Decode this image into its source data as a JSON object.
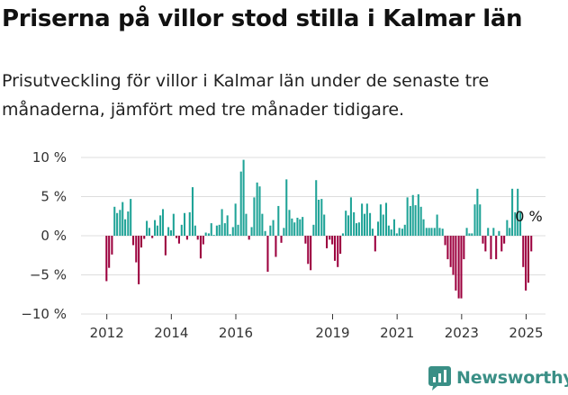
{
  "title": "Priserna på villor stod stilla i Kalmar län",
  "subtitle": "Prisutveckling för villor i Kalmar län under de senaste tre månaderna, jämfört med tre månader tidigare.",
  "brand": "Newsworthy",
  "colors": {
    "positive": "#1fa397",
    "negative": "#9c003e",
    "text": "#111111",
    "grid": "#dddddd",
    "brand": "#3a8f86"
  },
  "chart_data": {
    "type": "bar",
    "y_tick_labels": [
      "10 %",
      "5 %",
      "0 %",
      "−5 %",
      "−10 %"
    ],
    "y_ticks": [
      10,
      5,
      0,
      -5,
      -10
    ],
    "ylim": [
      -10,
      10
    ],
    "x_tick_labels": [
      "2012",
      "2014",
      "2016",
      "2019",
      "2021",
      "2023",
      "2025"
    ],
    "x_ticks": [
      2012,
      2014,
      2016,
      2019,
      2021,
      2023,
      2025
    ],
    "xlim": [
      2011.2,
      2025.6
    ],
    "annotation": "0 %",
    "series": [
      {
        "values": [
          {
            "x": 2011.99,
            "y": -5.8
          },
          {
            "x": 2012.07,
            "y": -4.1
          },
          {
            "x": 2012.16,
            "y": -2.4
          },
          {
            "x": 2012.24,
            "y": 3.7
          },
          {
            "x": 2012.32,
            "y": 2.9
          },
          {
            "x": 2012.41,
            "y": 3.3
          },
          {
            "x": 2012.49,
            "y": 4.3
          },
          {
            "x": 2012.57,
            "y": 2.1
          },
          {
            "x": 2012.66,
            "y": 3.1
          },
          {
            "x": 2012.74,
            "y": 4.7
          },
          {
            "x": 2012.82,
            "y": -1.2
          },
          {
            "x": 2012.91,
            "y": -3.4
          },
          {
            "x": 2012.99,
            "y": -6.2
          },
          {
            "x": 2013.07,
            "y": -1.5
          },
          {
            "x": 2013.16,
            "y": -0.4
          },
          {
            "x": 2013.24,
            "y": 1.9
          },
          {
            "x": 2013.32,
            "y": 1.0
          },
          {
            "x": 2013.41,
            "y": -0.3
          },
          {
            "x": 2013.49,
            "y": 2.0
          },
          {
            "x": 2013.57,
            "y": 1.3
          },
          {
            "x": 2013.66,
            "y": 2.6
          },
          {
            "x": 2013.74,
            "y": 3.4
          },
          {
            "x": 2013.82,
            "y": -2.5
          },
          {
            "x": 2013.91,
            "y": 1.1
          },
          {
            "x": 2013.99,
            "y": 0.7
          },
          {
            "x": 2014.07,
            "y": 2.8
          },
          {
            "x": 2014.16,
            "y": -0.3
          },
          {
            "x": 2014.24,
            "y": -1.0
          },
          {
            "x": 2014.32,
            "y": 1.4
          },
          {
            "x": 2014.41,
            "y": 2.9
          },
          {
            "x": 2014.49,
            "y": -0.5
          },
          {
            "x": 2014.57,
            "y": 3.0
          },
          {
            "x": 2014.66,
            "y": 6.2
          },
          {
            "x": 2014.74,
            "y": 1.3
          },
          {
            "x": 2014.82,
            "y": -0.5
          },
          {
            "x": 2014.91,
            "y": -2.9
          },
          {
            "x": 2014.99,
            "y": -1.1
          },
          {
            "x": 2015.07,
            "y": 0.4
          },
          {
            "x": 2015.16,
            "y": 0.3
          },
          {
            "x": 2015.24,
            "y": 1.6
          },
          {
            "x": 2015.32,
            "y": 0.1
          },
          {
            "x": 2015.41,
            "y": 1.3
          },
          {
            "x": 2015.49,
            "y": 1.4
          },
          {
            "x": 2015.57,
            "y": 3.4
          },
          {
            "x": 2015.66,
            "y": 1.6
          },
          {
            "x": 2015.74,
            "y": 2.6
          },
          {
            "x": 2015.82,
            "y": 0.2
          },
          {
            "x": 2015.91,
            "y": 1.1
          },
          {
            "x": 2015.99,
            "y": 4.1
          },
          {
            "x": 2016.07,
            "y": 1.4
          },
          {
            "x": 2016.16,
            "y": 8.2
          },
          {
            "x": 2016.24,
            "y": 9.7
          },
          {
            "x": 2016.32,
            "y": 2.8
          },
          {
            "x": 2016.41,
            "y": -0.5
          },
          {
            "x": 2016.49,
            "y": 1.1
          },
          {
            "x": 2016.57,
            "y": 4.9
          },
          {
            "x": 2016.66,
            "y": 6.8
          },
          {
            "x": 2016.74,
            "y": 6.3
          },
          {
            "x": 2016.82,
            "y": 2.8
          },
          {
            "x": 2016.91,
            "y": 0.6
          },
          {
            "x": 2016.99,
            "y": -4.6
          },
          {
            "x": 2017.07,
            "y": 1.3
          },
          {
            "x": 2017.16,
            "y": 2.0
          },
          {
            "x": 2017.24,
            "y": -2.7
          },
          {
            "x": 2017.32,
            "y": 3.8
          },
          {
            "x": 2017.41,
            "y": -0.9
          },
          {
            "x": 2017.49,
            "y": 1.0
          },
          {
            "x": 2017.57,
            "y": 7.2
          },
          {
            "x": 2017.66,
            "y": 3.3
          },
          {
            "x": 2017.74,
            "y": 2.2
          },
          {
            "x": 2017.82,
            "y": 1.7
          },
          {
            "x": 2017.91,
            "y": 2.3
          },
          {
            "x": 2017.99,
            "y": 2.1
          },
          {
            "x": 2018.07,
            "y": 2.4
          },
          {
            "x": 2018.16,
            "y": -1.0
          },
          {
            "x": 2018.24,
            "y": -3.6
          },
          {
            "x": 2018.32,
            "y": -4.4
          },
          {
            "x": 2018.41,
            "y": 1.4
          },
          {
            "x": 2018.49,
            "y": 7.1
          },
          {
            "x": 2018.57,
            "y": 4.6
          },
          {
            "x": 2018.66,
            "y": 4.7
          },
          {
            "x": 2018.74,
            "y": 2.7
          },
          {
            "x": 2018.82,
            "y": -1.6
          },
          {
            "x": 2018.91,
            "y": -0.5
          },
          {
            "x": 2018.99,
            "y": -1.1
          },
          {
            "x": 2019.07,
            "y": -3.2
          },
          {
            "x": 2019.16,
            "y": -4.0
          },
          {
            "x": 2019.24,
            "y": -2.3
          },
          {
            "x": 2019.32,
            "y": 0.3
          },
          {
            "x": 2019.41,
            "y": 3.2
          },
          {
            "x": 2019.49,
            "y": 2.6
          },
          {
            "x": 2019.57,
            "y": 4.9
          },
          {
            "x": 2019.66,
            "y": 3.0
          },
          {
            "x": 2019.74,
            "y": 1.6
          },
          {
            "x": 2019.82,
            "y": 1.7
          },
          {
            "x": 2019.91,
            "y": 4.1
          },
          {
            "x": 2019.99,
            "y": 2.8
          },
          {
            "x": 2020.07,
            "y": 4.1
          },
          {
            "x": 2020.16,
            "y": 2.9
          },
          {
            "x": 2020.24,
            "y": 0.9
          },
          {
            "x": 2020.32,
            "y": -2.0
          },
          {
            "x": 2020.41,
            "y": 1.8
          },
          {
            "x": 2020.49,
            "y": 4.0
          },
          {
            "x": 2020.57,
            "y": 2.7
          },
          {
            "x": 2020.66,
            "y": 4.2
          },
          {
            "x": 2020.74,
            "y": 1.3
          },
          {
            "x": 2020.82,
            "y": 0.8
          },
          {
            "x": 2020.91,
            "y": 2.1
          },
          {
            "x": 2020.99,
            "y": 0.3
          },
          {
            "x": 2021.07,
            "y": 1.0
          },
          {
            "x": 2021.16,
            "y": 0.9
          },
          {
            "x": 2021.24,
            "y": 1.4
          },
          {
            "x": 2021.32,
            "y": 4.9
          },
          {
            "x": 2021.41,
            "y": 3.8
          },
          {
            "x": 2021.49,
            "y": 5.2
          },
          {
            "x": 2021.57,
            "y": 3.9
          },
          {
            "x": 2021.66,
            "y": 5.3
          },
          {
            "x": 2021.74,
            "y": 3.7
          },
          {
            "x": 2021.82,
            "y": 2.1
          },
          {
            "x": 2021.91,
            "y": 1.0
          },
          {
            "x": 2021.99,
            "y": 1.0
          },
          {
            "x": 2022.07,
            "y": 1.0
          },
          {
            "x": 2022.16,
            "y": 1.0
          },
          {
            "x": 2022.24,
            "y": 2.7
          },
          {
            "x": 2022.32,
            "y": 1.0
          },
          {
            "x": 2022.41,
            "y": 0.9
          },
          {
            "x": 2022.49,
            "y": -1.2
          },
          {
            "x": 2022.57,
            "y": -3.0
          },
          {
            "x": 2022.66,
            "y": -4.0
          },
          {
            "x": 2022.74,
            "y": -5.0
          },
          {
            "x": 2022.82,
            "y": -7.0
          },
          {
            "x": 2022.91,
            "y": -8.0
          },
          {
            "x": 2022.99,
            "y": -8.0
          },
          {
            "x": 2023.07,
            "y": -3.0
          },
          {
            "x": 2023.16,
            "y": 1.0
          },
          {
            "x": 2023.24,
            "y": 0.3
          },
          {
            "x": 2023.32,
            "y": 0.3
          },
          {
            "x": 2023.41,
            "y": 4.0
          },
          {
            "x": 2023.49,
            "y": 6.0
          },
          {
            "x": 2023.57,
            "y": 4.0
          },
          {
            "x": 2023.66,
            "y": -1.0
          },
          {
            "x": 2023.74,
            "y": -2.0
          },
          {
            "x": 2023.82,
            "y": 1.0
          },
          {
            "x": 2023.91,
            "y": -3.0
          },
          {
            "x": 2023.99,
            "y": 1.0
          },
          {
            "x": 2024.07,
            "y": -3.0
          },
          {
            "x": 2024.16,
            "y": 0.6
          },
          {
            "x": 2024.24,
            "y": -2.0
          },
          {
            "x": 2024.32,
            "y": -1.0
          },
          {
            "x": 2024.41,
            "y": 2.0
          },
          {
            "x": 2024.49,
            "y": 1.0
          },
          {
            "x": 2024.57,
            "y": 6.0
          },
          {
            "x": 2024.66,
            "y": 3.0
          },
          {
            "x": 2024.74,
            "y": 6.0
          },
          {
            "x": 2024.82,
            "y": 3.0
          },
          {
            "x": 2024.91,
            "y": -4.0
          },
          {
            "x": 2024.99,
            "y": -7.0
          },
          {
            "x": 2025.07,
            "y": -6.0
          },
          {
            "x": 2025.16,
            "y": -2.0
          }
        ]
      }
    ]
  }
}
